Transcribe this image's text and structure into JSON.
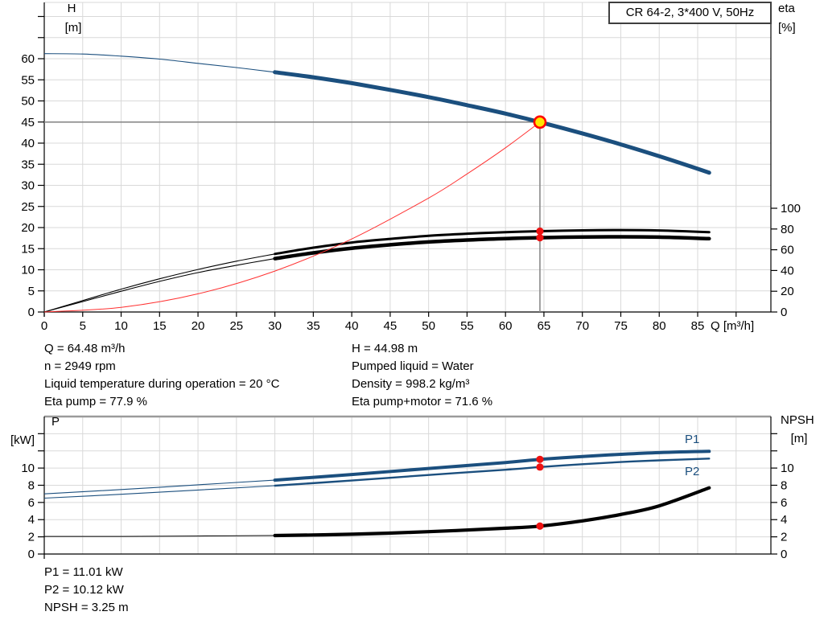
{
  "header": {
    "title_box": "CR 64-2, 3*400 V, 50Hz"
  },
  "colors": {
    "curve_blue": "#1b4f7e",
    "curve_black": "#000000",
    "system_curve_red": "#ff3232",
    "dot_red": "#ee1111",
    "op_marker_fill": "#ffe600",
    "op_marker_ring": "#ff0000",
    "guide_gray": "#8a8a8a",
    "grid_gray": "#d9d9d9",
    "bottom_chart_top_border": "#9b9b9b"
  },
  "legend": {
    "p1": "P1",
    "p2": "P2"
  },
  "info_top_left": {
    "lines": [
      "Q = 64.48 m³/h",
      "n = 2949 rpm",
      "Liquid temperature during operation = 20 °C",
      "Eta pump = 77.9 %"
    ]
  },
  "info_top_right": {
    "lines": [
      "H = 44.98 m",
      "Pumped liquid = Water",
      "Density = 998.2 kg/m³",
      "Eta pump+motor = 71.6 %"
    ]
  },
  "info_bottom": {
    "lines": [
      "P1 = 11.01 kW",
      "P2 = 10.12 kW",
      "NPSH = 3.25 m"
    ]
  },
  "chart_data": [
    {
      "type": "line",
      "name": "qh-performance-chart",
      "title": "CR 64-2, 3*400 V, 50Hz",
      "x_axis": {
        "label": "Q [m³/h]",
        "min": 0,
        "max": 94.5,
        "ticks": [
          0,
          5,
          10,
          15,
          20,
          25,
          30,
          35,
          40,
          45,
          50,
          55,
          60,
          65,
          70,
          75,
          80,
          85
        ],
        "unlabeled_ticks": [
          90
        ]
      },
      "y_left": {
        "label_line1": "H",
        "label_line2": "[m]",
        "min": 0,
        "max": 73.3,
        "ticks": [
          0,
          5,
          10,
          15,
          20,
          25,
          30,
          35,
          40,
          45,
          50,
          55,
          60
        ],
        "unlabeled_ticks": [
          65,
          70
        ]
      },
      "y_right": {
        "label_line1": "eta",
        "label_line2": "[%]",
        "min": 0,
        "max": 298,
        "ticks": [
          0,
          20,
          40,
          60,
          80,
          100
        ],
        "unlabeled_ticks": []
      },
      "series": [
        {
          "name": "head",
          "axis": "left",
          "color": "#1b4f7e",
          "thick_from": 30,
          "width_thin": 1.1,
          "width_thick": 5,
          "points": [
            [
              0,
              61.2
            ],
            [
              5,
              61.1
            ],
            [
              10,
              60.6
            ],
            [
              15,
              59.9
            ],
            [
              20,
              58.9
            ],
            [
              25,
              57.9
            ],
            [
              30,
              56.8
            ],
            [
              35,
              55.6
            ],
            [
              40,
              54.2
            ],
            [
              45,
              52.6
            ],
            [
              50,
              50.9
            ],
            [
              55,
              49.0
            ],
            [
              60,
              47.0
            ],
            [
              64.48,
              44.98
            ],
            [
              70,
              42.3
            ],
            [
              75,
              39.7
            ],
            [
              80,
              36.9
            ],
            [
              86.5,
              33.0
            ]
          ]
        },
        {
          "name": "eta_pump",
          "axis": "right",
          "color": "#000000",
          "thick_from": 30,
          "width_thin": 1.1,
          "width_thick": 3,
          "points": [
            [
              0,
              0
            ],
            [
              5,
              11
            ],
            [
              10,
              22
            ],
            [
              15,
              32
            ],
            [
              20,
              41
            ],
            [
              25,
              49
            ],
            [
              30,
              56
            ],
            [
              35,
              62
            ],
            [
              40,
              67
            ],
            [
              45,
              70.5
            ],
            [
              50,
              73.5
            ],
            [
              55,
              75.5
            ],
            [
              60,
              77
            ],
            [
              64.48,
              77.9
            ],
            [
              70,
              78.7
            ],
            [
              75,
              79
            ],
            [
              80,
              78.6
            ],
            [
              86.5,
              77
            ]
          ]
        },
        {
          "name": "eta_pump_motor",
          "axis": "right",
          "color": "#000000",
          "thick_from": 30,
          "width_thin": 1.1,
          "width_thick": 4.5,
          "points": [
            [
              0,
              0
            ],
            [
              5,
              10
            ],
            [
              10,
              20
            ],
            [
              15,
              29.5
            ],
            [
              20,
              38
            ],
            [
              25,
              45
            ],
            [
              30,
              51.5
            ],
            [
              35,
              57
            ],
            [
              40,
              61.5
            ],
            [
              45,
              64.8
            ],
            [
              50,
              67.5
            ],
            [
              55,
              69.4
            ],
            [
              60,
              70.8
            ],
            [
              64.48,
              71.6
            ],
            [
              70,
              72.3
            ],
            [
              75,
              72.5
            ],
            [
              80,
              72.2
            ],
            [
              86.5,
              70.7
            ]
          ]
        },
        {
          "name": "system_curve",
          "axis": "left",
          "color": "#ff3232",
          "thick_from": null,
          "width_thin": 1,
          "width_thick": 1,
          "points": [
            [
              0,
              0
            ],
            [
              10,
              1.1
            ],
            [
              20,
              4.3
            ],
            [
              30,
              9.7
            ],
            [
              40,
              17.3
            ],
            [
              50,
              27.0
            ],
            [
              55,
              32.7
            ],
            [
              60,
              38.9
            ],
            [
              64.48,
              44.98
            ]
          ]
        }
      ],
      "operating_point": {
        "q": 64.48,
        "h": 44.98
      },
      "dots": [
        {
          "series": "eta_pump",
          "q": 64.48,
          "v": 77.9
        },
        {
          "series": "eta_pump_motor",
          "q": 64.48,
          "v": 71.6
        }
      ]
    },
    {
      "type": "line",
      "name": "power-npsh-chart",
      "title": "",
      "x_axis": {
        "label": "",
        "min": 0,
        "max": 94.5,
        "ticks": [],
        "unlabeled_ticks": [
          0,
          5,
          10,
          15,
          20,
          25,
          30,
          35,
          40,
          45,
          50,
          55,
          60,
          65,
          70,
          75,
          80,
          85,
          90
        ]
      },
      "y_left": {
        "label_line1": "P",
        "label_line2": "[kW]",
        "min": 0,
        "max": 16,
        "ticks": [
          0,
          2,
          4,
          6,
          8,
          10
        ],
        "unlabeled_ticks": [
          12,
          14
        ]
      },
      "y_right": {
        "label_line1": "NPSH",
        "label_line2": "[m]",
        "min": 0,
        "max": 16,
        "ticks": [
          0,
          2,
          4,
          6,
          8,
          10
        ],
        "unlabeled_ticks": [
          12,
          14
        ]
      },
      "series": [
        {
          "name": "p1",
          "legend": "P1",
          "axis": "left",
          "color": "#1b4f7e",
          "thick_from": 30,
          "width_thin": 1.1,
          "width_thick": 4,
          "points": [
            [
              0,
              7.0
            ],
            [
              10,
              7.5
            ],
            [
              20,
              8.05
            ],
            [
              30,
              8.6
            ],
            [
              40,
              9.25
            ],
            [
              50,
              9.95
            ],
            [
              60,
              10.65
            ],
            [
              64.48,
              11.01
            ],
            [
              70,
              11.35
            ],
            [
              75,
              11.6
            ],
            [
              80,
              11.8
            ],
            [
              86.5,
              11.95
            ]
          ]
        },
        {
          "name": "p2",
          "legend": "P2",
          "axis": "left",
          "color": "#1b4f7e",
          "thick_from": 30,
          "width_thin": 1.1,
          "width_thick": 2.4,
          "points": [
            [
              0,
              6.5
            ],
            [
              10,
              6.95
            ],
            [
              20,
              7.45
            ],
            [
              30,
              7.95
            ],
            [
              40,
              8.55
            ],
            [
              50,
              9.2
            ],
            [
              60,
              9.8
            ],
            [
              64.48,
              10.12
            ],
            [
              70,
              10.45
            ],
            [
              75,
              10.7
            ],
            [
              80,
              10.9
            ],
            [
              86.5,
              11.1
            ]
          ]
        },
        {
          "name": "npsh",
          "axis": "right",
          "color": "#000000",
          "thick_from": 30,
          "width_thin": 1,
          "width_thick": 4.2,
          "points": [
            [
              0,
              2.05
            ],
            [
              10,
              2.05
            ],
            [
              20,
              2.1
            ],
            [
              30,
              2.15
            ],
            [
              40,
              2.3
            ],
            [
              50,
              2.6
            ],
            [
              60,
              3.0
            ],
            [
              64.48,
              3.25
            ],
            [
              70,
              3.85
            ],
            [
              75,
              4.6
            ],
            [
              80,
              5.6
            ],
            [
              86.5,
              7.7
            ]
          ]
        }
      ],
      "dots": [
        {
          "series": "p1",
          "q": 64.48,
          "v": 11.01
        },
        {
          "series": "p2",
          "q": 64.48,
          "v": 10.12
        },
        {
          "series": "npsh",
          "q": 64.48,
          "v": 3.25
        }
      ]
    }
  ]
}
